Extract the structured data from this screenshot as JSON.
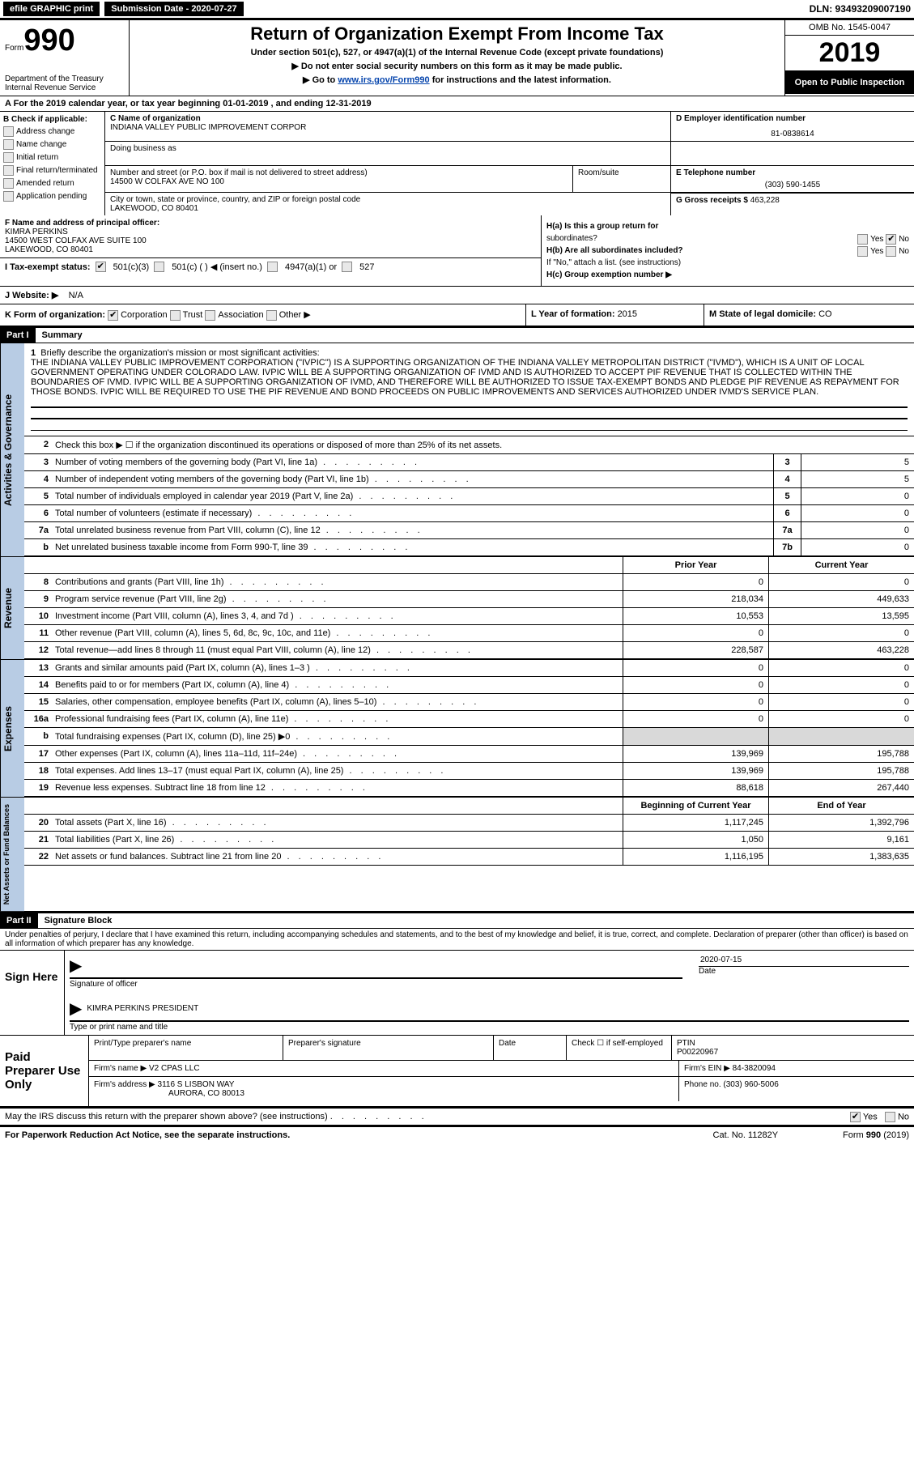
{
  "topbar": {
    "efile": "efile GRAPHIC print",
    "sub_label": "Submission Date - 2020-07-27",
    "dln": "DLN: 93493209007190"
  },
  "header": {
    "form_word": "Form",
    "form_num": "990",
    "dept": "Department of the Treasury",
    "irs": "Internal Revenue Service",
    "title": "Return of Organization Exempt From Income Tax",
    "sub1": "Under section 501(c), 527, or 4947(a)(1) of the Internal Revenue Code (except private foundations)",
    "sub2": "▶ Do not enter social security numbers on this form as it may be made public.",
    "sub3_pre": "▶ Go to ",
    "sub3_link": "www.irs.gov/Form990",
    "sub3_post": " for instructions and the latest information.",
    "omb": "OMB No. 1545-0047",
    "year": "2019",
    "public": "Open to Public Inspection"
  },
  "sectionA": {
    "text_pre": "A   For the 2019 calendar year, or tax year beginning ",
    "begin": "01-01-2019",
    "mid": "  , and ending ",
    "end": "12-31-2019"
  },
  "colB": {
    "head": "B Check if applicable:",
    "items": [
      "Address change",
      "Name change",
      "Initial return",
      "Final return/terminated",
      "Amended return",
      "Application pending"
    ]
  },
  "blockC": {
    "c_label": "C Name of organization",
    "c_val": "INDIANA VALLEY PUBLIC IMPROVEMENT CORPOR",
    "dba_label": "Doing business as",
    "addr_label": "Number and street (or P.O. box if mail is not delivered to street address)",
    "addr_val": "14500 W COLFAX AVE NO 100",
    "room_label": "Room/suite",
    "city_label": "City or town, state or province, country, and ZIP or foreign postal code",
    "city_val": "LAKEWOOD, CO  80401"
  },
  "blockD": {
    "label": "D Employer identification number",
    "val": "81-0838614"
  },
  "blockE": {
    "label": "E Telephone number",
    "val": "(303) 590-1455"
  },
  "blockG": {
    "label": "G Gross receipts $ ",
    "val": "463,228"
  },
  "blockF": {
    "label": "F Name and address of principal officer:",
    "name": "KIMRA PERKINS",
    "addr1": "14500 WEST COLFAX AVE SUITE 100",
    "addr2": "LAKEWOOD, CO  80401"
  },
  "blockH": {
    "a_label": "H(a)   Is this a group return for",
    "a_sub": "subordinates?",
    "b_label": "H(b)   Are all subordinates included?",
    "b_sub": "If \"No,\" attach a list. (see instructions)",
    "c_label": "H(c)   Group exemption number ▶",
    "yes": "Yes",
    "no": "No"
  },
  "rowI": {
    "label": "I   Tax-exempt status:",
    "s1": "501(c)(3)",
    "s2": "501(c) (   ) ◀ (insert no.)",
    "s3": "4947(a)(1) or",
    "s4": "527"
  },
  "rowJ": {
    "label": "J   Website: ▶",
    "val": "N/A"
  },
  "rowK": {
    "label": "K Form of organization:",
    "opts": [
      "Corporation",
      "Trust",
      "Association",
      "Other ▶"
    ]
  },
  "rowL": {
    "label": "L Year of formation: ",
    "val": "2015"
  },
  "rowM": {
    "label": "M State of legal domicile: ",
    "val": "CO"
  },
  "part1": {
    "tag": "Part I",
    "title": "Summary"
  },
  "mission": {
    "num": "1",
    "label": "Briefly describe the organization's mission or most significant activities:",
    "text": "THE INDIANA VALLEY PUBLIC IMPROVEMENT CORPORATION (\"IVPIC\") IS A SUPPORTING ORGANIZATION OF THE INDIANA VALLEY METROPOLITAN DISTRICT (\"IVMD\"), WHICH IS A UNIT OF LOCAL GOVERNMENT OPERATING UNDER COLORADO LAW. IVPIC WILL BE A SUPPORTING ORGANIZATION OF IVMD AND IS AUTHORIZED TO ACCEPT PIF REVENUE THAT IS COLLECTED WITHIN THE BOUNDARIES OF IVMD. IVPIC WILL BE A SUPPORTING ORGANIZATION OF IVMD, AND THEREFORE WILL BE AUTHORIZED TO ISSUE TAX-EXEMPT BONDS AND PLEDGE PIF REVENUE AS REPAYMENT FOR THOSE BONDS. IVPIC WILL BE REQUIRED TO USE THE PIF REVENUE AND BOND PROCEEDS ON PUBLIC IMPROVEMENTS AND SERVICES AUTHORIZED UNDER IVMD'S SERVICE PLAN."
  },
  "gov_rows": [
    {
      "n": "2",
      "d": "Check this box ▶ ☐  if the organization discontinued its operations or disposed of more than 25% of its net assets.",
      "box": "",
      "val": ""
    },
    {
      "n": "3",
      "d": "Number of voting members of the governing body (Part VI, line 1a)",
      "box": "3",
      "val": "5"
    },
    {
      "n": "4",
      "d": "Number of independent voting members of the governing body (Part VI, line 1b)",
      "box": "4",
      "val": "5"
    },
    {
      "n": "5",
      "d": "Total number of individuals employed in calendar year 2019 (Part V, line 2a)",
      "box": "5",
      "val": "0"
    },
    {
      "n": "6",
      "d": "Total number of volunteers (estimate if necessary)",
      "box": "6",
      "val": "0"
    },
    {
      "n": "7a",
      "d": "Total unrelated business revenue from Part VIII, column (C), line 12",
      "box": "7a",
      "val": "0"
    },
    {
      "n": "b",
      "d": "Net unrelated business taxable income from Form 990-T, line 39",
      "box": "7b",
      "val": "0"
    }
  ],
  "vert_labels": {
    "gov": "Activities & Governance",
    "rev": "Revenue",
    "exp": "Expenses",
    "net": "Net Assets or Fund Balances"
  },
  "rev_header": {
    "prior": "Prior Year",
    "curr": "Current Year"
  },
  "rev_rows": [
    {
      "n": "8",
      "d": "Contributions and grants (Part VIII, line 1h)",
      "p": "0",
      "c": "0"
    },
    {
      "n": "9",
      "d": "Program service revenue (Part VIII, line 2g)",
      "p": "218,034",
      "c": "449,633"
    },
    {
      "n": "10",
      "d": "Investment income (Part VIII, column (A), lines 3, 4, and 7d )",
      "p": "10,553",
      "c": "13,595"
    },
    {
      "n": "11",
      "d": "Other revenue (Part VIII, column (A), lines 5, 6d, 8c, 9c, 10c, and 11e)",
      "p": "0",
      "c": "0"
    },
    {
      "n": "12",
      "d": "Total revenue—add lines 8 through 11 (must equal Part VIII, column (A), line 12)",
      "p": "228,587",
      "c": "463,228"
    }
  ],
  "exp_rows": [
    {
      "n": "13",
      "d": "Grants and similar amounts paid (Part IX, column (A), lines 1–3 )",
      "p": "0",
      "c": "0"
    },
    {
      "n": "14",
      "d": "Benefits paid to or for members (Part IX, column (A), line 4)",
      "p": "0",
      "c": "0"
    },
    {
      "n": "15",
      "d": "Salaries, other compensation, employee benefits (Part IX, column (A), lines 5–10)",
      "p": "0",
      "c": "0"
    },
    {
      "n": "16a",
      "d": "Professional fundraising fees (Part IX, column (A), line 11e)",
      "p": "0",
      "c": "0"
    },
    {
      "n": "b",
      "d": "Total fundraising expenses (Part IX, column (D), line 25) ▶0",
      "p": "GREY",
      "c": "GREY"
    },
    {
      "n": "17",
      "d": "Other expenses (Part IX, column (A), lines 11a–11d, 11f–24e)",
      "p": "139,969",
      "c": "195,788"
    },
    {
      "n": "18",
      "d": "Total expenses. Add lines 13–17 (must equal Part IX, column (A), line 25)",
      "p": "139,969",
      "c": "195,788"
    },
    {
      "n": "19",
      "d": "Revenue less expenses. Subtract line 18 from line 12",
      "p": "88,618",
      "c": "267,440"
    }
  ],
  "net_header": {
    "prior": "Beginning of Current Year",
    "curr": "End of Year"
  },
  "net_rows": [
    {
      "n": "20",
      "d": "Total assets (Part X, line 16)",
      "p": "1,117,245",
      "c": "1,392,796"
    },
    {
      "n": "21",
      "d": "Total liabilities (Part X, line 26)",
      "p": "1,050",
      "c": "9,161"
    },
    {
      "n": "22",
      "d": "Net assets or fund balances. Subtract line 21 from line 20",
      "p": "1,116,195",
      "c": "1,383,635"
    }
  ],
  "part2": {
    "tag": "Part II",
    "title": "Signature Block",
    "penalty": "Under penalties of perjury, I declare that I have examined this return, including accompanying schedules and statements, and to the best of my knowledge and belief, it is true, correct, and complete. Declaration of preparer (other than officer) is based on all information of which preparer has any knowledge."
  },
  "sign": {
    "here": "Sign Here",
    "sig_label": "Signature of officer",
    "date": "2020-07-15",
    "date_label": "Date",
    "name": "KIMRA PERKINS  PRESIDENT",
    "name_label": "Type or print name and title"
  },
  "paid": {
    "title": "Paid Preparer Use Only",
    "h1": "Print/Type preparer's name",
    "h2": "Preparer's signature",
    "h3": "Date",
    "h4_pre": "Check ☐ if self-employed",
    "h5": "PTIN",
    "ptin": "P00220967",
    "firm_name_l": "Firm's name    ▶",
    "firm_name": "V2 CPAS LLC",
    "firm_ein_l": "Firm's EIN ▶",
    "firm_ein": "84-3820094",
    "firm_addr_l": "Firm's address ▶",
    "firm_addr1": "3116 S LISBON WAY",
    "firm_addr2": "AURORA, CO  80013",
    "phone_l": "Phone no. ",
    "phone": "(303) 960-5006"
  },
  "discuss": {
    "text": "May the IRS discuss this return with the preparer shown above? (see instructions)",
    "yes": "Yes",
    "no": "No"
  },
  "footer": {
    "left": "For Paperwork Reduction Act Notice, see the separate instructions.",
    "center": "Cat. No. 11282Y",
    "right": "Form 990 (2019)"
  }
}
